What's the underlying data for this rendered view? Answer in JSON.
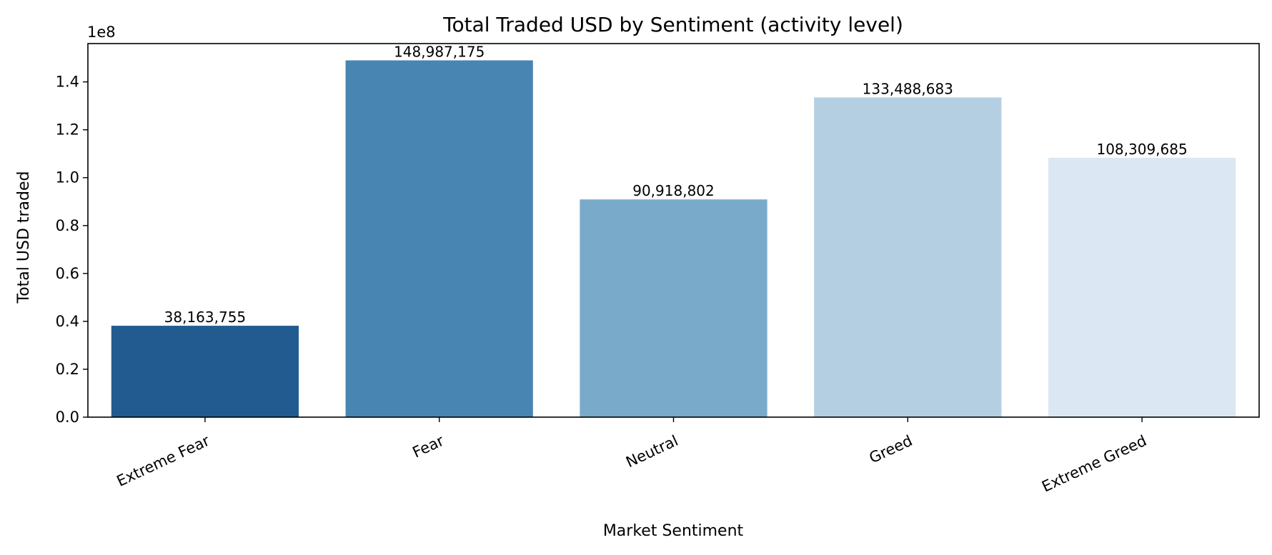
{
  "chart_data": {
    "type": "bar",
    "title": "Total Traded USD by Sentiment (activity level)",
    "xlabel": "Market Sentiment",
    "ylabel": "Total USD traded",
    "y_scale_offset": "1e8",
    "categories": [
      "Extreme Fear",
      "Fear",
      "Neutral",
      "Greed",
      "Extreme Greed"
    ],
    "values": [
      38163755,
      148987175,
      90918802,
      133488683,
      108309685
    ],
    "value_labels": [
      "38,163,755",
      "148,987,175",
      "90,918,802",
      "133,488,683",
      "108,309,685"
    ],
    "colors": [
      "#225b8f",
      "#4985b2",
      "#79aac9",
      "#b4cfe1",
      "#dbe7f2"
    ],
    "ylim": [
      0,
      156000000
    ],
    "y_ticks": [
      0,
      20000000,
      40000000,
      60000000,
      80000000,
      100000000,
      120000000,
      140000000
    ],
    "y_tick_labels": [
      "0.0",
      "0.2",
      "0.4",
      "0.6",
      "0.8",
      "1.0",
      "1.2",
      "1.4"
    ],
    "grid": false,
    "legend": "none"
  }
}
